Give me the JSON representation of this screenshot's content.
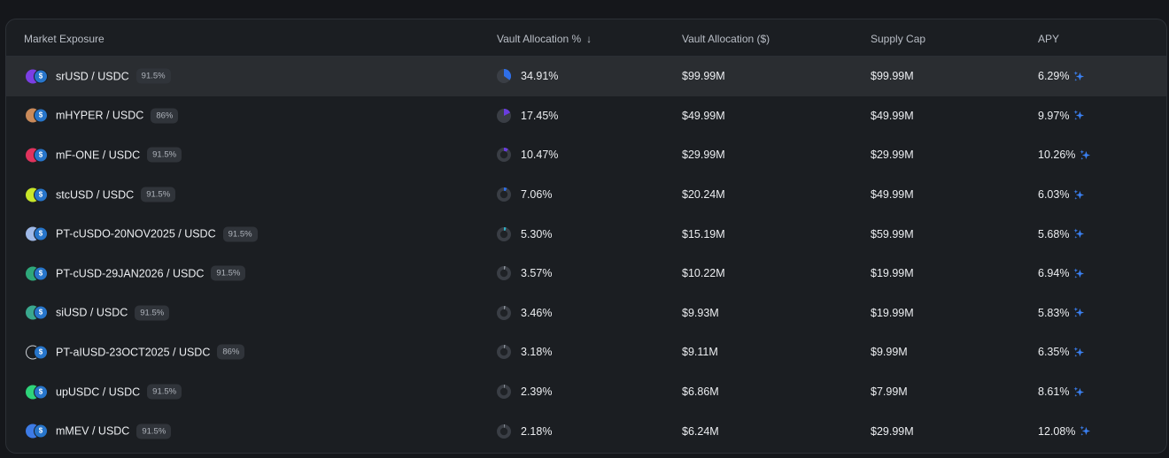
{
  "headers": {
    "market": "Market Exposure",
    "alloc_pct": "Vault Allocation %",
    "sort_icon": "arrow-down-icon",
    "alloc_usd": "Vault Allocation ($)",
    "supply_cap": "Supply Cap",
    "apy": "APY"
  },
  "colors": {
    "usdc": "#2775ca",
    "pie_track": "#3a3e45",
    "sparkle": "#3b82f6"
  },
  "rows": [
    {
      "pair": "srUSD / USDC",
      "lltv": "91.5%",
      "alloc_pct": "34.91%",
      "alloc_fraction": 0.3491,
      "pie_color": "#2f6fe8",
      "alloc_usd": "$99.99M",
      "supply_cap": "$99.99M",
      "apy": "6.29%",
      "coin_color": "#7b3fe4",
      "coin_icon": "srusd-icon"
    },
    {
      "pair": "mHYPER / USDC",
      "lltv": "86%",
      "alloc_pct": "17.45%",
      "alloc_fraction": 0.1745,
      "pie_color": "#6a3de0",
      "alloc_usd": "$49.99M",
      "supply_cap": "$49.99M",
      "apy": "9.97%",
      "coin_color": "#c98a5a",
      "coin_icon": "mhyper-icon"
    },
    {
      "pair": "mF-ONE / USDC",
      "lltv": "91.5%",
      "alloc_pct": "10.47%",
      "alloc_fraction": 0.1047,
      "pie_color": "#6a3de0",
      "alloc_usd": "$29.99M",
      "supply_cap": "$29.99M",
      "apy": "10.26%",
      "coin_color": "#e0335d",
      "coin_icon": "mfone-icon"
    },
    {
      "pair": "stcUSD / USDC",
      "lltv": "91.5%",
      "alloc_pct": "7.06%",
      "alloc_fraction": 0.0706,
      "pie_color": "#2f6fe8",
      "alloc_usd": "$20.24M",
      "supply_cap": "$49.99M",
      "apy": "6.03%",
      "coin_color": "#c8e62a",
      "coin_icon": "stcusd-icon"
    },
    {
      "pair": "PT-cUSDO-20NOV2025 / USDC",
      "lltv": "91.5%",
      "alloc_pct": "5.30%",
      "alloc_fraction": 0.053,
      "pie_color": "#2fb3c8",
      "alloc_usd": "$15.19M",
      "supply_cap": "$59.99M",
      "apy": "5.68%",
      "coin_color": "#9fb9e8",
      "coin_icon": "cusdo-icon"
    },
    {
      "pair": "PT-cUSD-29JAN2026 / USDC",
      "lltv": "91.5%",
      "alloc_pct": "3.57%",
      "alloc_fraction": 0.0357,
      "pie_color": "#8f969e",
      "alloc_usd": "$10.22M",
      "supply_cap": "$19.99M",
      "apy": "6.94%",
      "coin_color": "#2ea87a",
      "coin_icon": "cusd-icon"
    },
    {
      "pair": "siUSD / USDC",
      "lltv": "91.5%",
      "alloc_pct": "3.46%",
      "alloc_fraction": 0.0346,
      "pie_color": "#8f969e",
      "alloc_usd": "$9.93M",
      "supply_cap": "$19.99M",
      "apy": "5.83%",
      "coin_color": "#3aa88e",
      "coin_icon": "siusd-icon"
    },
    {
      "pair": "PT-aIUSD-23OCT2025 / USDC",
      "lltv": "86%",
      "alloc_pct": "3.18%",
      "alloc_fraction": 0.0318,
      "pie_color": "#8f969e",
      "alloc_usd": "$9.11M",
      "supply_cap": "$9.99M",
      "apy": "6.35%",
      "coin_color": "#1b1e22",
      "coin_icon": "aiusd-icon"
    },
    {
      "pair": "upUSDC / USDC",
      "lltv": "91.5%",
      "alloc_pct": "2.39%",
      "alloc_fraction": 0.0239,
      "pie_color": "#8f969e",
      "alloc_usd": "$6.86M",
      "supply_cap": "$7.99M",
      "apy": "8.61%",
      "coin_color": "#2ed47a",
      "coin_icon": "upusdc-icon"
    },
    {
      "pair": "mMEV / USDC",
      "lltv": "91.5%",
      "alloc_pct": "2.18%",
      "alloc_fraction": 0.0218,
      "pie_color": "#8f969e",
      "alloc_usd": "$6.24M",
      "supply_cap": "$29.99M",
      "apy": "12.08%",
      "coin_color": "#3d7be6",
      "coin_icon": "mmev-icon"
    }
  ]
}
